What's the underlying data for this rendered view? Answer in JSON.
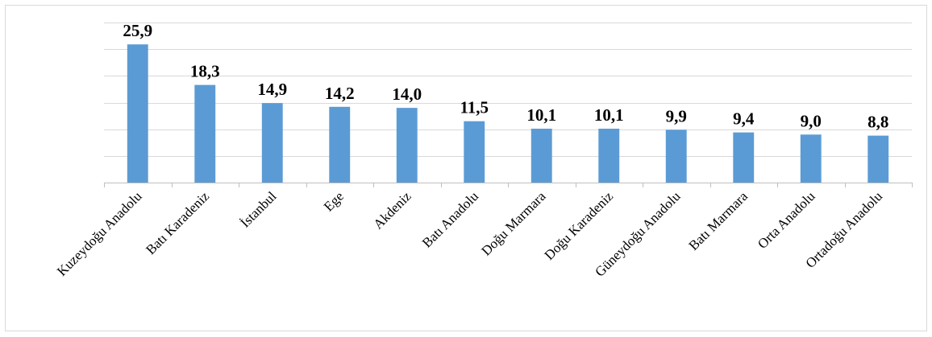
{
  "chart_data": {
    "type": "bar",
    "title": "",
    "xlabel": "",
    "ylabel": "",
    "categories": [
      "Kuzeydoğu Anadolu",
      "Batı Karadeniz",
      "İstanbul",
      "Ege",
      "Akdeniz",
      "Batı Anadolu",
      "Doğu Marmara",
      "Doğu Karadeniz",
      "Güneydoğu Anadolu",
      "Batı Marmara",
      "Orta Anadolu",
      "Ortadoğu Anadolu"
    ],
    "values": [
      25.9,
      18.3,
      14.9,
      14.2,
      14.0,
      11.5,
      10.1,
      10.1,
      9.9,
      9.4,
      9.0,
      8.8
    ],
    "value_labels": [
      "25,9",
      "18,3",
      "14,9",
      "14,2",
      "14,0",
      "11,5",
      "10,1",
      "10,1",
      "9,9",
      "9,4",
      "9,0",
      "8,8"
    ],
    "ylim": [
      0,
      30
    ],
    "y_gridline_step": 5,
    "y_tick_labels_shown": false,
    "grid": true,
    "legend": "none",
    "bar_color": "#5b9bd5",
    "grid_color": "#d9d9d9",
    "axis_color": "#bfbfbf"
  }
}
